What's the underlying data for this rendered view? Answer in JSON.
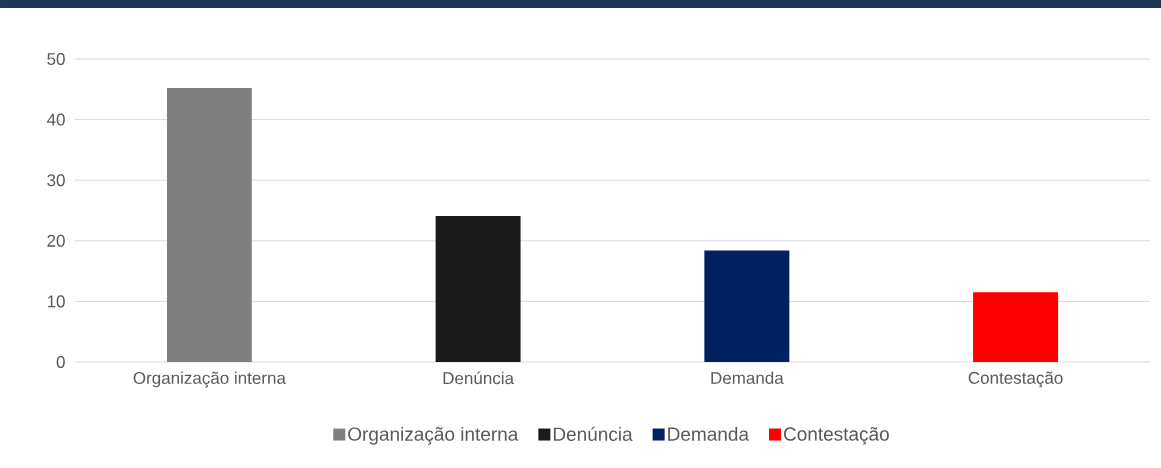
{
  "chart_data": {
    "type": "bar",
    "categories": [
      "Organização interna",
      "Denúncia",
      "Demanda",
      "Contestação"
    ],
    "series": [
      {
        "name": "Organização interna",
        "color": "#7f7f7f",
        "values": [
          45.2,
          null,
          null,
          null
        ]
      },
      {
        "name": "Denúncia",
        "color": "#1a1a1a",
        "values": [
          null,
          24.1,
          null,
          null
        ]
      },
      {
        "name": "Demanda",
        "color": "#002060",
        "values": [
          null,
          null,
          18.4,
          null
        ]
      },
      {
        "name": "Contestação",
        "color": "#ff0000",
        "values": [
          null,
          null,
          null,
          11.5
        ]
      }
    ],
    "ylim": [
      0,
      50
    ],
    "yticks": [
      0,
      10,
      20,
      30,
      40,
      50
    ],
    "grid": "y",
    "legend": "bottom"
  }
}
